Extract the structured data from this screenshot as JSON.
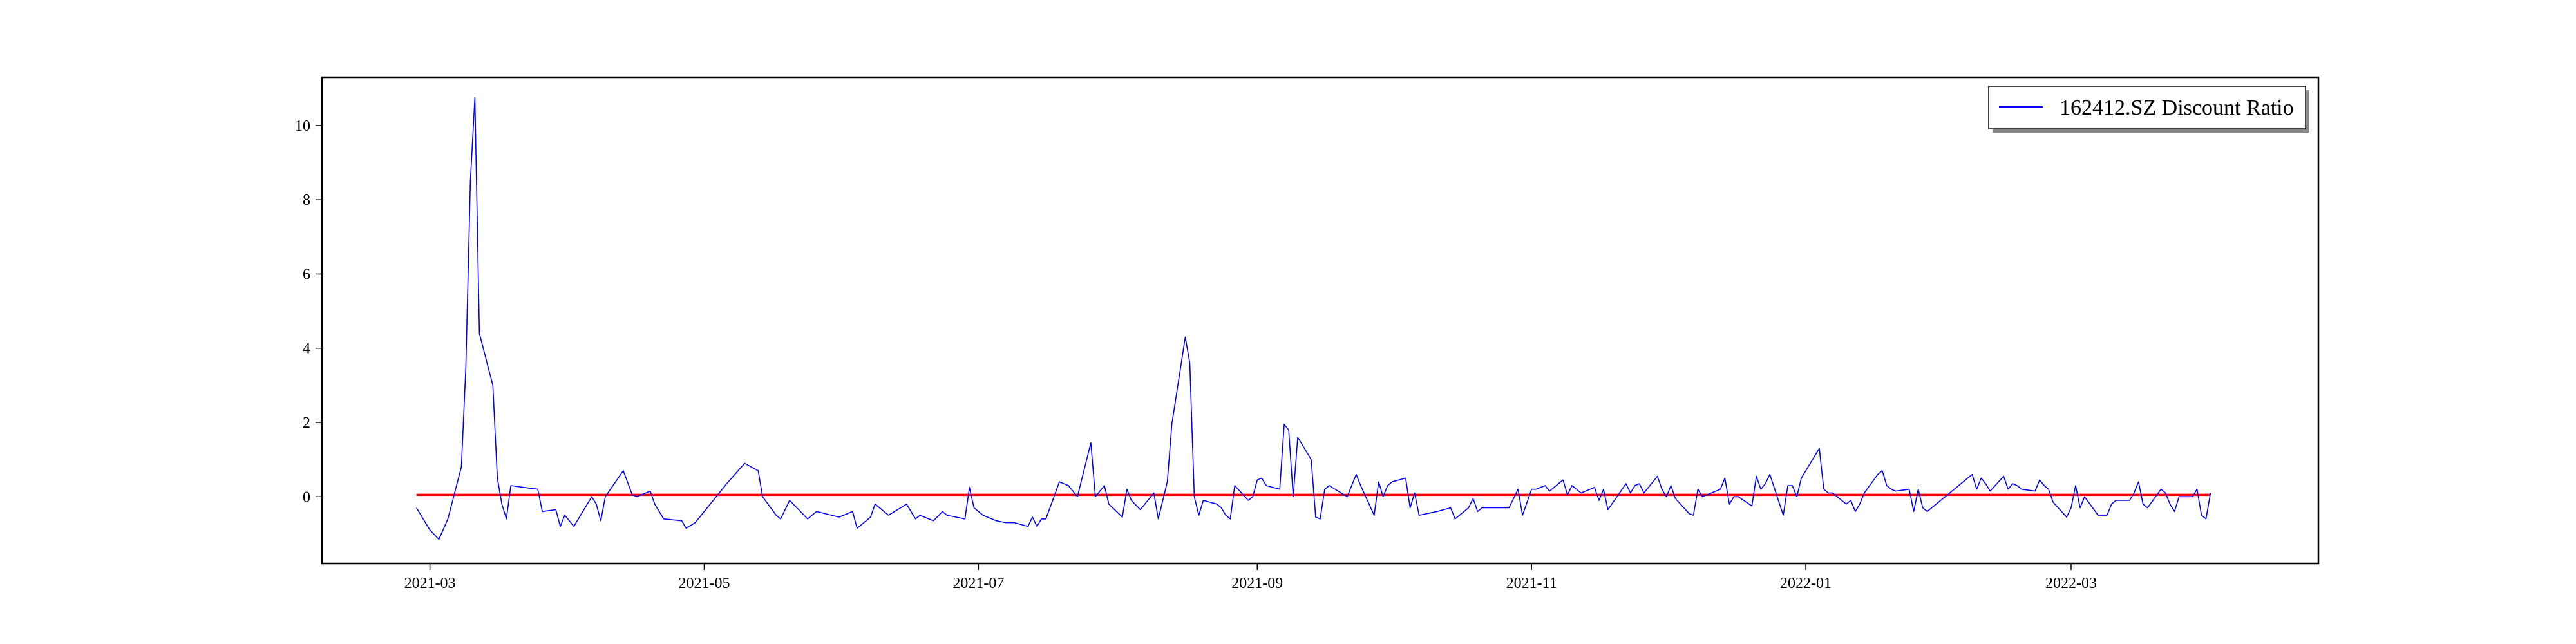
{
  "chart_data": {
    "type": "line",
    "title": "",
    "xlabel": "",
    "ylabel": "",
    "legend_position": "top-right",
    "grid": false,
    "xlim": [
      "2021-02-05",
      "2022-04-25"
    ],
    "ylim": [
      -1.8,
      11.3
    ],
    "x_ticks": [
      {
        "date": "2021-03-01",
        "label": "2021-03"
      },
      {
        "date": "2021-05-01",
        "label": "2021-05"
      },
      {
        "date": "2021-07-01",
        "label": "2021-07"
      },
      {
        "date": "2021-09-01",
        "label": "2021-09"
      },
      {
        "date": "2021-11-01",
        "label": "2021-11"
      },
      {
        "date": "2022-01-01",
        "label": "2022-01"
      },
      {
        "date": "2022-03-01",
        "label": "2022-03"
      }
    ],
    "y_ticks": [
      0,
      2,
      4,
      6,
      8,
      10
    ],
    "series": [
      {
        "name": "162412.SZ Discount Ratio",
        "color": "#0000ff",
        "points": [
          [
            "2021-02-26",
            -0.3
          ],
          [
            "2021-03-01",
            -0.9
          ],
          [
            "2021-03-03",
            -1.15
          ],
          [
            "2021-03-05",
            -0.6
          ],
          [
            "2021-03-08",
            0.8
          ],
          [
            "2021-03-09",
            3.5
          ],
          [
            "2021-03-10",
            8.5
          ],
          [
            "2021-03-11",
            10.75
          ],
          [
            "2021-03-12",
            4.4
          ],
          [
            "2021-03-15",
            3.0
          ],
          [
            "2021-03-16",
            0.5
          ],
          [
            "2021-03-17",
            -0.2
          ],
          [
            "2021-03-18",
            -0.6
          ],
          [
            "2021-03-19",
            0.3
          ],
          [
            "2021-03-22",
            0.25
          ],
          [
            "2021-03-25",
            0.2
          ],
          [
            "2021-03-26",
            -0.4
          ],
          [
            "2021-03-29",
            -0.35
          ],
          [
            "2021-03-30",
            -0.8
          ],
          [
            "2021-03-31",
            -0.5
          ],
          [
            "2021-04-02",
            -0.8
          ],
          [
            "2021-04-06",
            0.0
          ],
          [
            "2021-04-07",
            -0.2
          ],
          [
            "2021-04-08",
            -0.65
          ],
          [
            "2021-04-09",
            0.0
          ],
          [
            "2021-04-13",
            0.7
          ],
          [
            "2021-04-15",
            0.05
          ],
          [
            "2021-04-16",
            0.0
          ],
          [
            "2021-04-19",
            0.15
          ],
          [
            "2021-04-20",
            -0.2
          ],
          [
            "2021-04-22",
            -0.6
          ],
          [
            "2021-04-26",
            -0.65
          ],
          [
            "2021-04-27",
            -0.85
          ],
          [
            "2021-04-29",
            -0.7
          ],
          [
            "2021-04-30",
            -0.55
          ],
          [
            "2021-05-06",
            0.35
          ],
          [
            "2021-05-10",
            0.9
          ],
          [
            "2021-05-13",
            0.7
          ],
          [
            "2021-05-14",
            0.0
          ],
          [
            "2021-05-17",
            -0.5
          ],
          [
            "2021-05-18",
            -0.6
          ],
          [
            "2021-05-20",
            -0.1
          ],
          [
            "2021-05-24",
            -0.6
          ],
          [
            "2021-05-26",
            -0.4
          ],
          [
            "2021-05-31",
            -0.55
          ],
          [
            "2021-06-01",
            -0.5
          ],
          [
            "2021-06-03",
            -0.4
          ],
          [
            "2021-06-04",
            -0.85
          ],
          [
            "2021-06-07",
            -0.55
          ],
          [
            "2021-06-08",
            -0.2
          ],
          [
            "2021-06-10",
            -0.4
          ],
          [
            "2021-06-11",
            -0.5
          ],
          [
            "2021-06-15",
            -0.2
          ],
          [
            "2021-06-17",
            -0.6
          ],
          [
            "2021-06-18",
            -0.5
          ],
          [
            "2021-06-21",
            -0.65
          ],
          [
            "2021-06-23",
            -0.4
          ],
          [
            "2021-06-24",
            -0.5
          ],
          [
            "2021-06-28",
            -0.6
          ],
          [
            "2021-06-29",
            0.25
          ],
          [
            "2021-06-30",
            -0.3
          ],
          [
            "2021-07-02",
            -0.5
          ],
          [
            "2021-07-05",
            -0.65
          ],
          [
            "2021-07-07",
            -0.7
          ],
          [
            "2021-07-09",
            -0.7
          ],
          [
            "2021-07-12",
            -0.8
          ],
          [
            "2021-07-13",
            -0.55
          ],
          [
            "2021-07-14",
            -0.8
          ],
          [
            "2021-07-15",
            -0.6
          ],
          [
            "2021-07-16",
            -0.6
          ],
          [
            "2021-07-19",
            0.4
          ],
          [
            "2021-07-21",
            0.3
          ],
          [
            "2021-07-23",
            0.0
          ],
          [
            "2021-07-26",
            1.45
          ],
          [
            "2021-07-27",
            0.0
          ],
          [
            "2021-07-29",
            0.3
          ],
          [
            "2021-07-30",
            -0.2
          ],
          [
            "2021-08-02",
            -0.55
          ],
          [
            "2021-08-03",
            0.2
          ],
          [
            "2021-08-04",
            -0.1
          ],
          [
            "2021-08-06",
            -0.35
          ],
          [
            "2021-08-09",
            0.1
          ],
          [
            "2021-08-10",
            -0.6
          ],
          [
            "2021-08-12",
            0.4
          ],
          [
            "2021-08-13",
            1.95
          ],
          [
            "2021-08-16",
            4.3
          ],
          [
            "2021-08-17",
            3.6
          ],
          [
            "2021-08-18",
            0.0
          ],
          [
            "2021-08-19",
            -0.5
          ],
          [
            "2021-08-20",
            -0.1
          ],
          [
            "2021-08-23",
            -0.2
          ],
          [
            "2021-08-24",
            -0.3
          ],
          [
            "2021-08-25",
            -0.5
          ],
          [
            "2021-08-26",
            -0.6
          ],
          [
            "2021-08-27",
            0.3
          ],
          [
            "2021-08-30",
            -0.1
          ],
          [
            "2021-08-31",
            0.0
          ],
          [
            "2021-09-01",
            0.45
          ],
          [
            "2021-09-02",
            0.5
          ],
          [
            "2021-09-03",
            0.3
          ],
          [
            "2021-09-06",
            0.2
          ],
          [
            "2021-09-07",
            1.95
          ],
          [
            "2021-09-08",
            1.8
          ],
          [
            "2021-09-09",
            0.0
          ],
          [
            "2021-09-10",
            1.6
          ],
          [
            "2021-09-13",
            1.0
          ],
          [
            "2021-09-14",
            -0.55
          ],
          [
            "2021-09-15",
            -0.6
          ],
          [
            "2021-09-16",
            0.2
          ],
          [
            "2021-09-17",
            0.3
          ],
          [
            "2021-09-21",
            0.0
          ],
          [
            "2021-09-23",
            0.6
          ],
          [
            "2021-09-24",
            0.3
          ],
          [
            "2021-09-27",
            -0.5
          ],
          [
            "2021-09-28",
            0.4
          ],
          [
            "2021-09-29",
            0.0
          ],
          [
            "2021-09-30",
            0.3
          ],
          [
            "2021-10-01",
            0.4
          ],
          [
            "2021-10-04",
            0.5
          ],
          [
            "2021-10-05",
            -0.3
          ],
          [
            "2021-10-06",
            0.1
          ],
          [
            "2021-10-07",
            -0.5
          ],
          [
            "2021-10-11",
            -0.4
          ],
          [
            "2021-10-14",
            -0.3
          ],
          [
            "2021-10-15",
            -0.6
          ],
          [
            "2021-10-18",
            -0.3
          ],
          [
            "2021-10-19",
            -0.05
          ],
          [
            "2021-10-20",
            -0.4
          ],
          [
            "2021-10-21",
            -0.3
          ],
          [
            "2021-10-27",
            -0.3
          ],
          [
            "2021-10-29",
            0.2
          ],
          [
            "2021-10-30",
            -0.5
          ],
          [
            "2021-11-01",
            0.2
          ],
          [
            "2021-11-02",
            0.2
          ],
          [
            "2021-11-04",
            0.3
          ],
          [
            "2021-11-05",
            0.15
          ],
          [
            "2021-11-08",
            0.45
          ],
          [
            "2021-11-09",
            0.05
          ],
          [
            "2021-11-10",
            0.3
          ],
          [
            "2021-11-11",
            0.2
          ],
          [
            "2021-11-12",
            0.1
          ],
          [
            "2021-11-15",
            0.25
          ],
          [
            "2021-11-16",
            -0.1
          ],
          [
            "2021-11-17",
            0.2
          ],
          [
            "2021-11-18",
            -0.35
          ],
          [
            "2021-11-22",
            0.35
          ],
          [
            "2021-11-23",
            0.1
          ],
          [
            "2021-11-24",
            0.3
          ],
          [
            "2021-11-25",
            0.35
          ],
          [
            "2021-11-26",
            0.1
          ],
          [
            "2021-11-29",
            0.55
          ],
          [
            "2021-11-30",
            0.2
          ],
          [
            "2021-12-01",
            0.0
          ],
          [
            "2021-12-02",
            0.3
          ],
          [
            "2021-12-03",
            -0.05
          ],
          [
            "2021-12-06",
            -0.45
          ],
          [
            "2021-12-07",
            -0.5
          ],
          [
            "2021-12-08",
            0.2
          ],
          [
            "2021-12-09",
            0.0
          ],
          [
            "2021-12-13",
            0.2
          ],
          [
            "2021-12-14",
            0.5
          ],
          [
            "2021-12-15",
            -0.2
          ],
          [
            "2021-12-16",
            0.0
          ],
          [
            "2021-12-17",
            0.0
          ],
          [
            "2021-12-20",
            -0.25
          ],
          [
            "2021-12-21",
            0.55
          ],
          [
            "2021-12-22",
            0.2
          ],
          [
            "2021-12-23",
            0.35
          ],
          [
            "2021-12-24",
            0.6
          ],
          [
            "2021-12-27",
            -0.5
          ],
          [
            "2021-12-28",
            0.3
          ],
          [
            "2021-12-29",
            0.3
          ],
          [
            "2021-12-30",
            0.0
          ],
          [
            "2021-12-31",
            0.5
          ],
          [
            "2022-01-04",
            1.3
          ],
          [
            "2022-01-05",
            0.2
          ],
          [
            "2022-01-06",
            0.1
          ],
          [
            "2022-01-07",
            0.1
          ],
          [
            "2022-01-10",
            -0.2
          ],
          [
            "2022-01-11",
            -0.1
          ],
          [
            "2022-01-12",
            -0.4
          ],
          [
            "2022-01-13",
            -0.2
          ],
          [
            "2022-01-14",
            0.1
          ],
          [
            "2022-01-17",
            0.6
          ],
          [
            "2022-01-18",
            0.7
          ],
          [
            "2022-01-19",
            0.3
          ],
          [
            "2022-01-20",
            0.2
          ],
          [
            "2022-01-21",
            0.15
          ],
          [
            "2022-01-24",
            0.2
          ],
          [
            "2022-01-25",
            -0.4
          ],
          [
            "2022-01-26",
            0.2
          ],
          [
            "2022-01-27",
            -0.3
          ],
          [
            "2022-01-28",
            -0.4
          ],
          [
            "2022-02-07",
            0.6
          ],
          [
            "2022-02-08",
            0.2
          ],
          [
            "2022-02-09",
            0.5
          ],
          [
            "2022-02-10",
            0.35
          ],
          [
            "2022-02-11",
            0.15
          ],
          [
            "2022-02-14",
            0.55
          ],
          [
            "2022-02-15",
            0.2
          ],
          [
            "2022-02-16",
            0.35
          ],
          [
            "2022-02-17",
            0.3
          ],
          [
            "2022-02-18",
            0.2
          ],
          [
            "2022-02-21",
            0.15
          ],
          [
            "2022-02-22",
            0.45
          ],
          [
            "2022-02-23",
            0.3
          ],
          [
            "2022-02-24",
            0.2
          ],
          [
            "2022-02-25",
            -0.15
          ],
          [
            "2022-02-28",
            -0.55
          ],
          [
            "2022-03-01",
            -0.3
          ],
          [
            "2022-03-02",
            0.3
          ],
          [
            "2022-03-03",
            -0.3
          ],
          [
            "2022-03-04",
            0.0
          ],
          [
            "2022-03-07",
            -0.5
          ],
          [
            "2022-03-08",
            -0.5
          ],
          [
            "2022-03-09",
            -0.5
          ],
          [
            "2022-03-10",
            -0.2
          ],
          [
            "2022-03-11",
            -0.1
          ],
          [
            "2022-03-14",
            -0.1
          ],
          [
            "2022-03-15",
            0.1
          ],
          [
            "2022-03-16",
            0.4
          ],
          [
            "2022-03-17",
            -0.2
          ],
          [
            "2022-03-18",
            -0.3
          ],
          [
            "2022-03-21",
            0.2
          ],
          [
            "2022-03-22",
            0.1
          ],
          [
            "2022-03-23",
            -0.2
          ],
          [
            "2022-03-24",
            -0.4
          ],
          [
            "2022-03-25",
            0.0
          ],
          [
            "2022-03-28",
            0.0
          ],
          [
            "2022-03-29",
            0.2
          ],
          [
            "2022-03-30",
            -0.5
          ],
          [
            "2022-03-31",
            -0.6
          ],
          [
            "2022-04-01",
            0.1
          ]
        ]
      }
    ],
    "reference_line": {
      "color": "#ff0000",
      "y": 0.05,
      "x_start": "2021-02-26",
      "x_end": "2022-04-01"
    }
  }
}
